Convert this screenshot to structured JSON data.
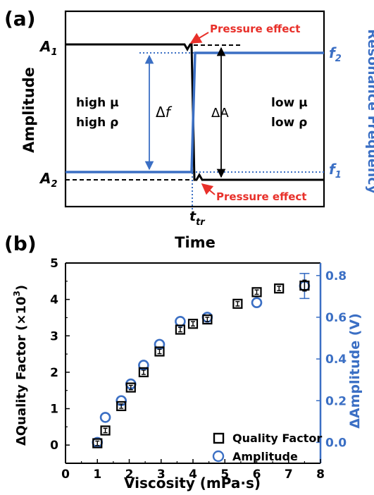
{
  "figure": {
    "panel_a": {
      "label": "(a)",
      "ylabel": "Amplitude",
      "xlabel": "Time",
      "right_label": "Resonance Frequency",
      "tick_a1": "A",
      "tick_a1_sub": "1",
      "tick_a2": "A",
      "tick_a2_sub": "2",
      "tick_f2": "f",
      "tick_f2_sub": "2",
      "tick_f1": "f",
      "tick_f1_sub": "1",
      "transition_label": "t",
      "transition_sub": "tr",
      "left_text_1": "high μ",
      "left_text_2": "high ρ",
      "right_text_1": "low μ",
      "right_text_2": "low ρ",
      "delta_f_symbol": "Δ",
      "delta_f_var": "f",
      "delta_a": "ΔA",
      "pressure_top": "Pressure effect",
      "pressure_bottom": "Pressure effect",
      "colors": {
        "amplitude": "#000000",
        "frequency": "#3b6fc4",
        "annotation": "#e8302a"
      }
    },
    "panel_b": {
      "label": "(b)",
      "ylabel_left_a": "ΔQuality Factor (×10",
      "ylabel_left_exp": "3",
      "ylabel_left_b": ")",
      "ylabel_right": "ΔAmplitude (V)",
      "xlabel": "Viscosity (mPa·s)",
      "colors": {
        "quality": "#000000",
        "amplitude": "#3b6fc4"
      }
    }
  },
  "chart_data": [
    {
      "type": "line",
      "title": "(a)",
      "xlabel": "Time",
      "ylabel": "Amplitude",
      "y2label": "Resonance Frequency",
      "series": [
        {
          "name": "Amplitude",
          "levels": [
            "A1",
            "A2"
          ]
        },
        {
          "name": "Resonance Frequency",
          "levels": [
            "f1",
            "f2"
          ]
        }
      ],
      "annotations": [
        "Pressure effect",
        "Pressure effect",
        "Δf",
        "ΔA",
        "t_tr",
        "high μ high ρ",
        "low μ low ρ"
      ]
    },
    {
      "type": "scatter",
      "title": "(b)",
      "xlabel": "Viscosity (mPa·s)",
      "ylabel": "ΔQuality Factor (×10^3)",
      "y2label": "ΔAmplitude (V)",
      "xlim": [
        0,
        8
      ],
      "ylim": [
        -0.5,
        5
      ],
      "y2lim": [
        -0.1,
        0.86
      ],
      "xticks": [
        0,
        1,
        2,
        3,
        4,
        5,
        6,
        7,
        8
      ],
      "yticks": [
        0,
        1,
        2,
        3,
        4,
        5
      ],
      "y2ticks": [
        0.0,
        0.2,
        0.4,
        0.6,
        0.8
      ],
      "y2tick_labels": [
        "0.0",
        "0.2",
        "0.4",
        "0.6",
        "0.8"
      ],
      "legend_position": "bottom-right",
      "series": [
        {
          "name": "Quality Factor",
          "axis": "left",
          "marker": "square",
          "color": "#000000",
          "x": [
            1.0,
            1.25,
            1.75,
            2.05,
            2.45,
            2.95,
            3.6,
            4.0,
            4.45,
            5.4,
            6.0,
            6.7,
            7.5
          ],
          "y": [
            0.05,
            0.4,
            1.07,
            1.58,
            2.0,
            2.57,
            3.17,
            3.33,
            3.45,
            3.88,
            4.2,
            4.3,
            4.38
          ],
          "err": [
            0.06,
            0.06,
            0.06,
            0.06,
            0.06,
            0.06,
            0.06,
            0.06,
            0.06,
            0.06,
            0.06,
            0.06,
            0.15
          ]
        },
        {
          "name": "Amplitude",
          "axis": "right",
          "marker": "circle",
          "color": "#3b6fc4",
          "x": [
            1.0,
            1.25,
            1.75,
            2.05,
            2.45,
            2.95,
            3.6,
            4.45,
            6.0,
            7.5
          ],
          "y": [
            0.0,
            0.12,
            0.2,
            0.28,
            0.37,
            0.47,
            0.58,
            0.6,
            0.67,
            0.75
          ],
          "err": [
            0.01,
            0.01,
            0.01,
            0.01,
            0.01,
            0.01,
            0.01,
            0.01,
            0.01,
            0.06
          ]
        }
      ]
    }
  ]
}
